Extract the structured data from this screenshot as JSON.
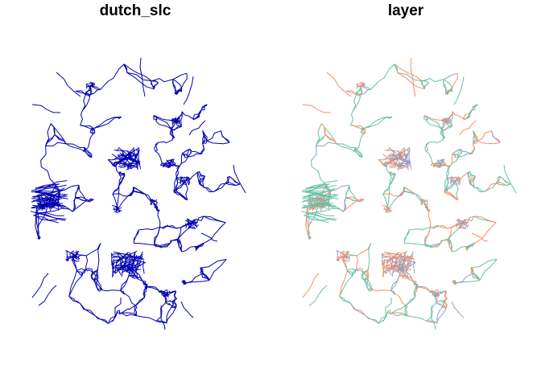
{
  "panels": [
    {
      "title": "dutch_slc",
      "colors": [
        "#0000b3"
      ]
    },
    {
      "title": "layer",
      "colors": [
        "#66c2a5",
        "#fc8d62",
        "#8da0cb"
      ]
    }
  ]
}
